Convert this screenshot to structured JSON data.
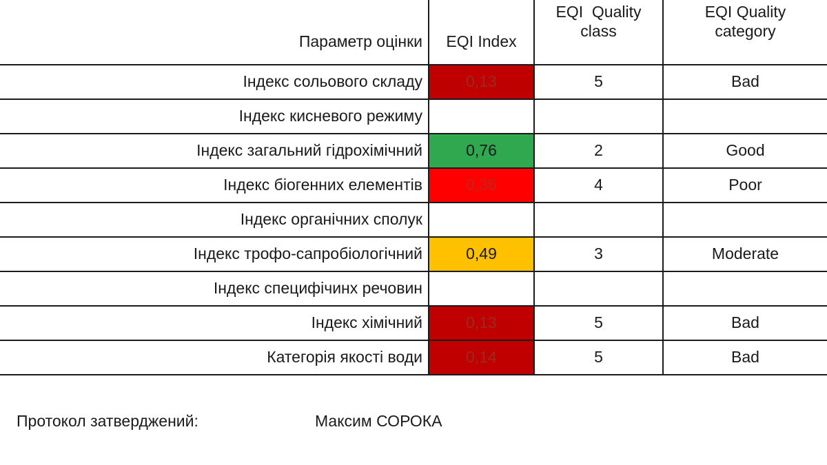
{
  "table": {
    "headers": {
      "parameter": "Параметр оцінки",
      "index": "EQI Index",
      "class_line1": "EQI  Quality",
      "class_line2": "class",
      "category_line1": "EQI Quality",
      "category_line2": "category"
    },
    "rows": [
      {
        "parameter": "Індекс сольового складу",
        "index": "0,13",
        "class": "5",
        "category": "Bad",
        "index_bg": "#c00000",
        "index_fg": "#9b2a22"
      },
      {
        "parameter": "Індекс кисневого режиму",
        "index": "",
        "class": "",
        "category": "",
        "index_bg": "#ffffff",
        "index_fg": "#1a1a1a"
      },
      {
        "parameter": "Індекс загальний гідрохімічний",
        "index": "0,76",
        "class": "2",
        "category": "Good",
        "index_bg": "#2fa84f",
        "index_fg": "#1a1a1a"
      },
      {
        "parameter": "Індекс біогенних елементів",
        "index": "0,36",
        "class": "4",
        "category": "Poor",
        "index_bg": "#ff0000",
        "index_fg": "#c4241c"
      },
      {
        "parameter": "Індекс органічних сполук",
        "index": "",
        "class": "",
        "category": "",
        "index_bg": "#ffffff",
        "index_fg": "#1a1a1a"
      },
      {
        "parameter": "Індекс трофо-сапробіологічний",
        "index": "0,49",
        "class": "3",
        "category": "Moderate",
        "index_bg": "#ffc000",
        "index_fg": "#1a1a1a"
      },
      {
        "parameter": "Індекс специфічинх речовин",
        "index": "",
        "class": "",
        "category": "",
        "index_bg": "#ffffff",
        "index_fg": "#1a1a1a"
      },
      {
        "parameter": "Індекс хімічний",
        "index": "0,13",
        "class": "5",
        "category": "Bad",
        "index_bg": "#c00000",
        "index_fg": "#9b2a22"
      },
      {
        "parameter": "Категорія якості води",
        "index": "0,14",
        "class": "5",
        "category": "Bad",
        "index_bg": "#c00000",
        "index_fg": "#9b2a22"
      }
    ]
  },
  "footer": {
    "label": "Протокол затверджений:",
    "name": "Максим СОРОКА"
  }
}
